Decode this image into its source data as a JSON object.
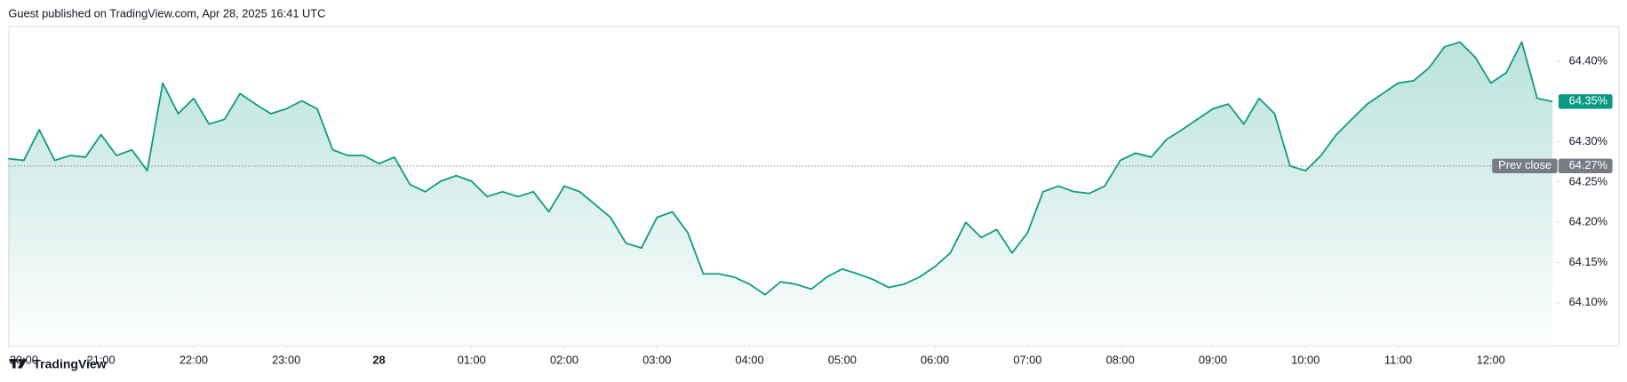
{
  "header": "Guest published on TradingView.com, Apr 28, 2025 16:41 UTC",
  "footer": "TradingView",
  "chart_data": {
    "type": "area-line",
    "color": "#089981",
    "x": [
      "20:00",
      "20:10",
      "20:20",
      "20:30",
      "20:40",
      "20:50",
      "21:00",
      "21:10",
      "21:20",
      "21:30",
      "21:40",
      "21:50",
      "22:00",
      "22:10",
      "22:20",
      "22:30",
      "22:40",
      "22:50",
      "23:00",
      "23:10",
      "23:20",
      "23:30",
      "23:40",
      "23:50",
      "00:00",
      "00:10",
      "00:20",
      "00:30",
      "00:40",
      "00:50",
      "01:00",
      "01:10",
      "01:20",
      "01:30",
      "01:40",
      "01:50",
      "02:00",
      "02:10",
      "02:20",
      "02:30",
      "02:40",
      "02:50",
      "03:00",
      "03:10",
      "03:20",
      "03:30",
      "03:40",
      "03:50",
      "04:00",
      "04:10",
      "04:20",
      "04:30",
      "04:40",
      "04:50",
      "05:00",
      "05:10",
      "05:20",
      "05:30",
      "05:40",
      "05:50",
      "06:00",
      "06:10",
      "06:20",
      "06:30",
      "06:40",
      "06:50",
      "07:00",
      "07:10",
      "07:20",
      "07:30",
      "07:40",
      "07:50",
      "08:00",
      "08:10",
      "08:20",
      "08:30",
      "08:40",
      "08:50",
      "09:00",
      "09:10",
      "09:20",
      "09:30",
      "09:40",
      "09:50",
      "10:00",
      "10:10",
      "10:20",
      "10:30",
      "10:40",
      "10:50",
      "11:00",
      "11:10",
      "11:20",
      "11:30",
      "11:40",
      "11:50",
      "12:00",
      "12:10",
      "12:20",
      "12:30",
      "12:40"
    ],
    "values": [
      64.279,
      64.277,
      64.315,
      64.277,
      64.283,
      64.281,
      64.309,
      64.283,
      64.29,
      64.264,
      64.373,
      64.335,
      64.354,
      64.322,
      64.328,
      64.36,
      64.347,
      64.335,
      64.341,
      64.351,
      64.341,
      64.29,
      64.283,
      64.283,
      64.273,
      64.281,
      64.247,
      64.238,
      64.251,
      64.258,
      64.251,
      64.232,
      64.238,
      64.232,
      64.238,
      64.213,
      64.245,
      64.238,
      64.222,
      64.206,
      64.174,
      64.168,
      64.206,
      64.213,
      64.187,
      64.136,
      64.136,
      64.132,
      64.123,
      64.11,
      64.126,
      64.123,
      64.117,
      64.132,
      64.142,
      64.136,
      64.129,
      64.119,
      64.123,
      64.132,
      64.145,
      64.162,
      64.2,
      64.181,
      64.191,
      64.162,
      64.187,
      64.238,
      64.245,
      64.238,
      64.236,
      64.245,
      64.277,
      64.286,
      64.281,
      64.303,
      64.315,
      64.328,
      64.341,
      64.347,
      64.322,
      64.354,
      64.335,
      64.27,
      64.264,
      64.283,
      64.309,
      64.328,
      64.347,
      64.36,
      64.373,
      64.376,
      64.392,
      64.418,
      64.424,
      64.405,
      64.373,
      64.386,
      64.424,
      64.354,
      64.35
    ],
    "xticks": [
      "20:00",
      "21:00",
      "22:00",
      "23:00",
      {
        "value": "00:00",
        "label": "28"
      },
      "01:00",
      "02:00",
      "03:00",
      "04:00",
      "05:00",
      "06:00",
      "07:00",
      "08:00",
      "09:00",
      "10:00",
      "11:00",
      "12:00"
    ],
    "ylim": [
      64.047,
      64.444
    ],
    "yticks": [
      {
        "value": 64.1,
        "label": "64.10%"
      },
      {
        "value": 64.15,
        "label": "64.15%"
      },
      {
        "value": 64.2,
        "label": "64.20%"
      },
      {
        "value": 64.25,
        "label": "64.25%"
      },
      {
        "value": 64.3,
        "label": "64.30%"
      },
      {
        "value": 64.4,
        "label": "64.40%"
      }
    ],
    "last_price": {
      "value": 64.35,
      "label": "64.35%"
    },
    "prev_close": {
      "name": "Prev close",
      "value": 64.27,
      "label": "64.27%"
    }
  }
}
